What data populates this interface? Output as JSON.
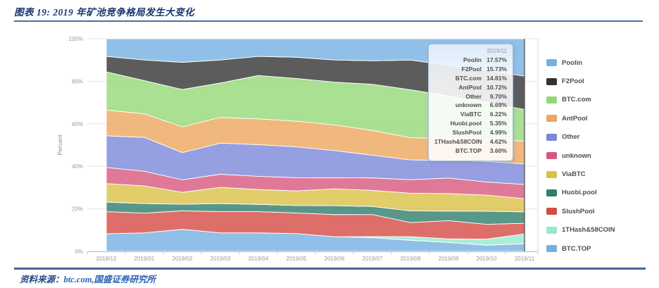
{
  "figure": {
    "title": "图表 19: 2019 年矿池竞争格局发生大变化"
  },
  "source": {
    "label": "资料来源：",
    "text": "btc.com,国盛证券研究所"
  },
  "chart_data": {
    "type": "area",
    "stacked": true,
    "percentage": true,
    "title": "",
    "xlabel": "",
    "ylabel": "Percent",
    "ylim": [
      0,
      100
    ],
    "ytick_values": [
      0,
      20,
      40,
      60,
      80,
      100
    ],
    "ytick_labels": [
      "0%",
      "20%",
      "40%",
      "60%",
      "80%",
      "100%"
    ],
    "grid": true,
    "legend_position": "right",
    "categories": [
      "2018/12",
      "2019/01",
      "2019/02",
      "2019/03",
      "2019/04",
      "2019/05",
      "2019/06",
      "2019/07",
      "2019/08",
      "2019/09",
      "2019/10",
      "2019/11"
    ],
    "crosshair_category": "2019/11",
    "series": [
      {
        "name": "Poolin",
        "color": "#74B0E1",
        "values": [
          8.3,
          10.0,
          11.1,
          10.0,
          8.3,
          8.7,
          10.0,
          10.4,
          10.0,
          12.5,
          15.0,
          17.57
        ]
      },
      {
        "name": "F2Pool",
        "color": "#333333",
        "values": [
          7.3,
          9.7,
          12.8,
          10.8,
          9.0,
          10.0,
          10.4,
          11.1,
          13.9,
          14.5,
          15.0,
          15.73
        ]
      },
      {
        "name": "BTC.com",
        "color": "#93D877",
        "values": [
          18.0,
          15.6,
          17.6,
          16.2,
          20.4,
          20.1,
          20.1,
          21.8,
          22.5,
          20.0,
          17.5,
          14.81
        ]
      },
      {
        "name": "AntPool",
        "color": "#EDA65C",
        "values": [
          12.1,
          11.1,
          12.1,
          12.1,
          12.1,
          12.1,
          12.1,
          11.7,
          10.4,
          10.4,
          10.5,
          10.72
        ]
      },
      {
        "name": "Other",
        "color": "#7B87D9",
        "values": [
          14.9,
          15.9,
          12.8,
          14.6,
          14.9,
          14.5,
          12.8,
          10.7,
          9.3,
          8.3,
          9.7,
          9.7
        ]
      },
      {
        "name": "unknown",
        "color": "#D8587D",
        "values": [
          7.6,
          6.9,
          5.9,
          6.2,
          6.2,
          6.2,
          5.2,
          5.9,
          6.3,
          7.3,
          6.2,
          6.69
        ]
      },
      {
        "name": "ViaBTC",
        "color": "#D9C145",
        "values": [
          8.7,
          8.3,
          5.6,
          7.6,
          7.0,
          6.9,
          7.9,
          7.6,
          8.3,
          8.3,
          7.6,
          6.22
        ]
      },
      {
        "name": "Huobi.pool",
        "color": "#2F7D6D",
        "values": [
          4.5,
          4.5,
          3.1,
          3.8,
          3.4,
          3.5,
          4.2,
          3.8,
          5.5,
          4.5,
          6.2,
          5.35
        ]
      },
      {
        "name": "SlushPool",
        "color": "#D64A44",
        "values": [
          10.4,
          9.3,
          8.7,
          10.0,
          10.0,
          9.7,
          10.4,
          10.4,
          6.6,
          8.6,
          7.0,
          4.99
        ]
      },
      {
        "name": "1THash&58COIN",
        "color": "#97E8D1",
        "values": [
          0,
          0,
          0,
          0,
          0,
          0,
          0,
          0.5,
          1.7,
          1.7,
          2.9,
          4.62
        ]
      },
      {
        "name": "BTC.TOP",
        "color": "#74B0E1",
        "values": [
          8.3,
          8.7,
          10.4,
          8.7,
          8.7,
          8.4,
          6.9,
          6.5,
          5.2,
          4.2,
          2.9,
          3.6
        ]
      }
    ]
  },
  "tooltip": {
    "header": "2019/11",
    "rows": [
      {
        "name": "Poolin",
        "value": "17.57%"
      },
      {
        "name": "F2Pool",
        "value": "15.73%"
      },
      {
        "name": "BTC.com",
        "value": "14.81%"
      },
      {
        "name": "AntPool",
        "value": "10.72%"
      },
      {
        "name": "Other",
        "value": "9.70%"
      },
      {
        "name": "unknown",
        "value": "6.69%"
      },
      {
        "name": "ViaBTC",
        "value": "6.22%"
      },
      {
        "name": "Huobi.pool",
        "value": "5.35%"
      },
      {
        "name": "SlushPool",
        "value": "4.99%"
      },
      {
        "name": "1THash&58COIN",
        "value": "4.62%"
      },
      {
        "name": "BTC.TOP",
        "value": "3.60%"
      }
    ]
  }
}
